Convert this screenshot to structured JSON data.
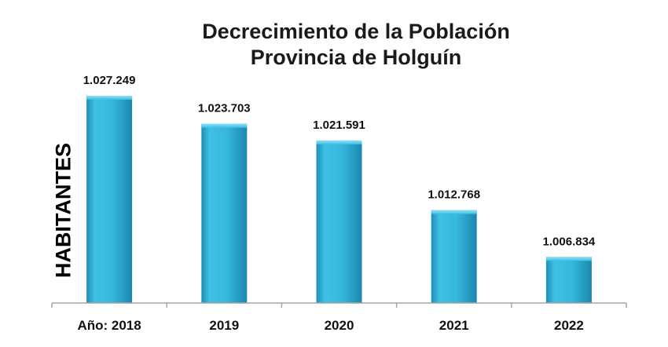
{
  "chart_data": {
    "type": "bar",
    "title": [
      "Decrecimiento de la Población",
      "Provincia de Holguín"
    ],
    "ylabel": "HABITANTES",
    "xlabel": "",
    "categories": [
      "Año: 2018",
      "2019",
      "2020",
      "2021",
      "2022"
    ],
    "values": [
      1027249,
      1023703,
      1021591,
      1012768,
      1006834
    ],
    "value_labels": [
      "1.027.249",
      "1.023.703",
      "1.021.591",
      "1.012.768",
      "1.006.834"
    ],
    "ylim": [
      1001000,
      1027249
    ],
    "grid": false,
    "legend": "none",
    "bar_color": "#2fb0d8"
  }
}
